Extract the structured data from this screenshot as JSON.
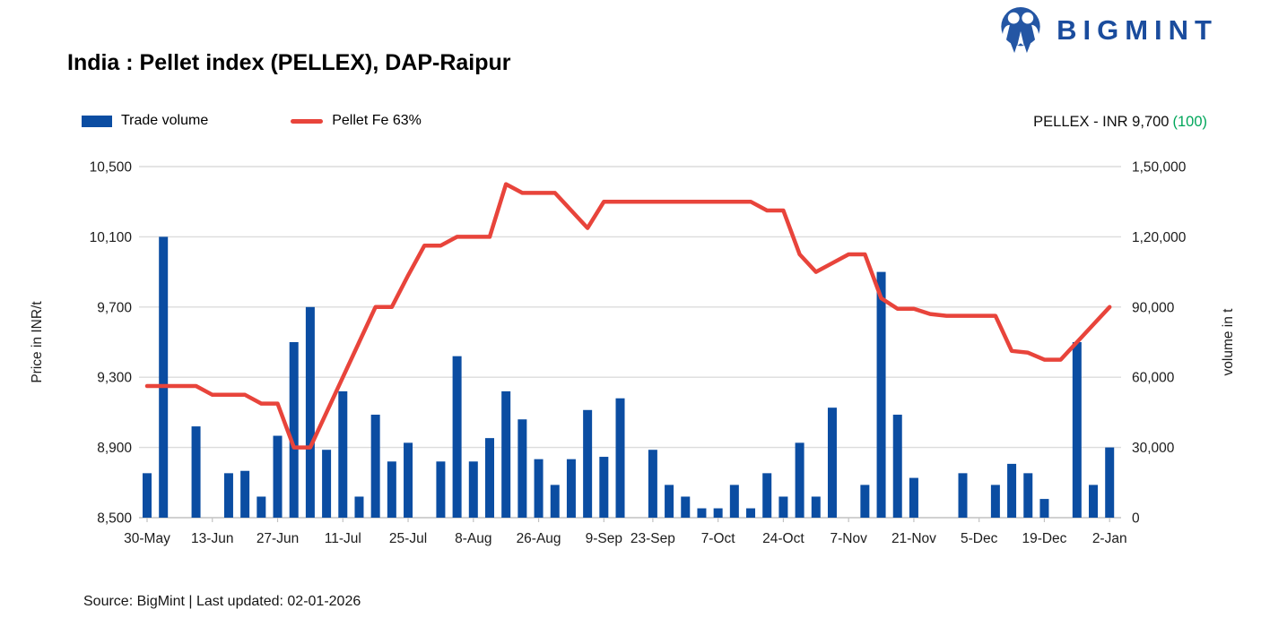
{
  "logo": {
    "brand": "BIGMINT"
  },
  "title": "India : Pellet index (PELLEX), DAP-Raipur",
  "legend": {
    "items": [
      {
        "label": "Trade volume",
        "type": "bar"
      },
      {
        "label": "Pellet Fe 63%",
        "type": "line"
      }
    ]
  },
  "pellex_note": {
    "text": "PELLEX - INR 9,700",
    "change": "(100)"
  },
  "footer": {
    "source": "Source: BigMint | Last updated: 02-01-2026"
  },
  "colors": {
    "bar": "#0b4da2",
    "line": "#e8443b",
    "grid": "#dcdcdc",
    "axis_line": "#c2c2c2",
    "tick_text": "#1c1c1c",
    "green": "#00a65a",
    "logo_blue": "#1a4c9d",
    "logo_circle": "#2456a4"
  },
  "chart_data": {
    "type": "combo_bar_line",
    "n_points": 60,
    "x_tick_labels": {
      "0": "30-May",
      "4": "13-Jun",
      "8": "27-Jun",
      "12": "11-Jul",
      "16": "25-Jul",
      "20": "8-Aug",
      "24": "26-Aug",
      "28": "9-Sep",
      "31": "23-Sep",
      "35": "7-Oct",
      "39": "24-Oct",
      "43": "7-Nov",
      "47": "21-Nov",
      "51": "5-Dec",
      "55": "19-Dec",
      "59": "2-Jan"
    },
    "series": [
      {
        "name": "Trade volume",
        "type": "bar",
        "axis": "right",
        "color": "#0b4da2",
        "values": [
          19000,
          120000,
          0,
          39000,
          0,
          19000,
          20000,
          9000,
          35000,
          75000,
          90000,
          29000,
          54000,
          9000,
          44000,
          24000,
          32000,
          0,
          24000,
          69000,
          24000,
          34000,
          54000,
          42000,
          25000,
          14000,
          25000,
          46000,
          26000,
          51000,
          0,
          29000,
          14000,
          9000,
          4000,
          4000,
          14000,
          4000,
          19000,
          9000,
          32000,
          9000,
          47000,
          0,
          14000,
          105000,
          44000,
          17000,
          0,
          0,
          19000,
          0,
          14000,
          23000,
          19000,
          8000,
          0,
          75000,
          14000,
          30000
        ]
      },
      {
        "name": "Pellet Fe 63%",
        "type": "line",
        "axis": "left",
        "color": "#e8443b",
        "values": [
          9250,
          9250,
          9250,
          9250,
          9200,
          9200,
          9200,
          9150,
          9150,
          8900,
          8900,
          9100,
          9300,
          9500,
          9700,
          9700,
          9880,
          10050,
          10050,
          10100,
          10100,
          10100,
          10400,
          10350,
          10350,
          10350,
          10250,
          10150,
          10300,
          10300,
          10300,
          10300,
          10300,
          10300,
          10300,
          10300,
          10300,
          10300,
          10250,
          10250,
          10000,
          9900,
          9950,
          10000,
          10000,
          9750,
          9690,
          9690,
          9660,
          9650,
          9650,
          9650,
          9650,
          9450,
          9440,
          9400,
          9400,
          9500,
          9600,
          9700
        ]
      }
    ],
    "left_axis": {
      "title": "Price in INR/t",
      "min": 8500,
      "max": 10500,
      "tick_labels": [
        "10,500",
        "10,100",
        "9,700",
        "9,300",
        "8,900",
        "8,500"
      ]
    },
    "right_axis": {
      "title": "volume in t",
      "min": 0,
      "max": 150000,
      "tick_labels": [
        "1,50,000",
        "1,20,000",
        "90,000",
        "60,000",
        "30,000",
        "0"
      ]
    },
    "grid": "horizontal"
  }
}
